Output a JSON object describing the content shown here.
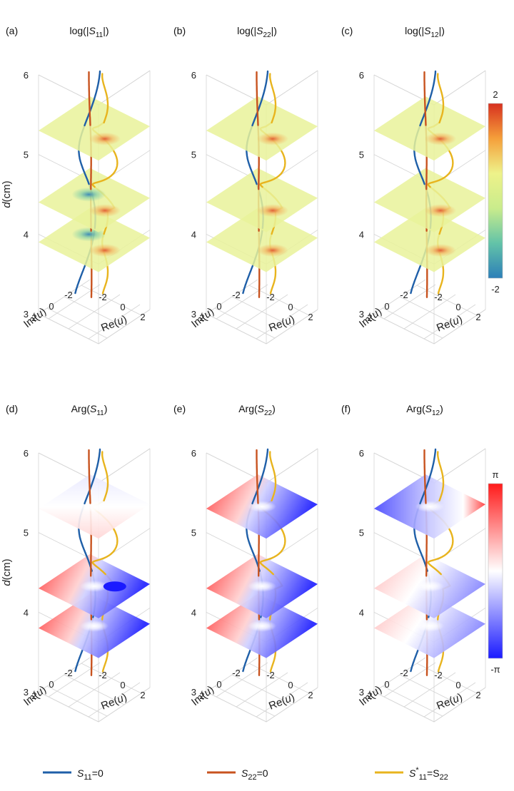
{
  "figure": {
    "row1_colorbar": {
      "max_label": "2",
      "min_label": "-2",
      "colors": [
        "#d7301f",
        "#f59f3a",
        "#eef28a",
        "#c9ec8c",
        "#63c3a8",
        "#2c7fb8"
      ]
    },
    "row2_colorbar": {
      "max_label": "π",
      "min_label": "-π",
      "colors": [
        "#ff1a1a",
        "#ffffff",
        "#1a1aff"
      ]
    },
    "y_axis_label": "d(cm)",
    "im_axis_label": "Im(u)",
    "re_axis_label": "Re(u)"
  },
  "chart_data": [
    {
      "panel": "(a)",
      "title_prefix": "log(|",
      "title_sym": "S",
      "title_sub": "11",
      "title_suffix": "|)",
      "type": "3d-surface-stack",
      "quantity": "log|S11|",
      "z_ticks": [
        "3",
        "4",
        "5",
        "6"
      ],
      "im_ticks": [
        "2",
        "0",
        "-2"
      ],
      "re_ticks": [
        "-2",
        "0",
        "2"
      ],
      "zlim": [
        3,
        6
      ],
      "slice_d": [
        3.9,
        4.4,
        5.3
      ],
      "colorbar_range": [
        -2,
        2
      ]
    },
    {
      "panel": "(b)",
      "title_prefix": "log(|",
      "title_sym": "S",
      "title_sub": "22",
      "title_suffix": "|)",
      "type": "3d-surface-stack",
      "quantity": "log|S22|",
      "z_ticks": [
        "3",
        "4",
        "5",
        "6"
      ],
      "im_ticks": [
        "2",
        "0",
        "-2"
      ],
      "re_ticks": [
        "-2",
        "0",
        "2"
      ],
      "zlim": [
        3,
        6
      ],
      "slice_d": [
        3.9,
        4.4,
        5.3
      ],
      "colorbar_range": [
        -2,
        2
      ]
    },
    {
      "panel": "(c)",
      "title_prefix": "log(|",
      "title_sym": "S",
      "title_sub": "12",
      "title_suffix": "|)",
      "type": "3d-surface-stack",
      "quantity": "log|S12|",
      "z_ticks": [
        "3",
        "4",
        "5",
        "6"
      ],
      "im_ticks": [
        "2",
        "0",
        "-2"
      ],
      "re_ticks": [
        "-2",
        "0",
        "2"
      ],
      "zlim": [
        3,
        6
      ],
      "slice_d": [
        3.9,
        4.4,
        5.3
      ],
      "colorbar_range": [
        -2,
        2
      ]
    },
    {
      "panel": "(d)",
      "title_prefix": "Arg(",
      "title_sym": "S",
      "title_sub": "11",
      "title_suffix": ")",
      "type": "3d-surface-stack",
      "quantity": "Arg(S11)",
      "z_ticks": [
        "3",
        "4",
        "5",
        "6"
      ],
      "im_ticks": [
        "2",
        "0",
        "-2"
      ],
      "re_ticks": [
        "-2",
        "0",
        "2"
      ],
      "zlim": [
        3,
        6
      ],
      "slice_d": [
        3.8,
        4.3,
        5.3
      ],
      "colorbar_range": [
        "-π",
        "π"
      ]
    },
    {
      "panel": "(e)",
      "title_prefix": "Arg(",
      "title_sym": "S",
      "title_sub": "22",
      "title_suffix": ")",
      "type": "3d-surface-stack",
      "quantity": "Arg(S22)",
      "z_ticks": [
        "3",
        "4",
        "5",
        "6"
      ],
      "im_ticks": [
        "2",
        "0",
        "-2"
      ],
      "re_ticks": [
        "-2",
        "0",
        "2"
      ],
      "zlim": [
        3,
        6
      ],
      "slice_d": [
        3.8,
        4.3,
        5.3
      ],
      "colorbar_range": [
        "-π",
        "π"
      ]
    },
    {
      "panel": "(f)",
      "title_prefix": "Arg(",
      "title_sym": "S",
      "title_sub": "12",
      "title_suffix": ")",
      "type": "3d-surface-stack",
      "quantity": "Arg(S12)",
      "z_ticks": [
        "3",
        "4",
        "5",
        "6"
      ],
      "im_ticks": [
        "2",
        "0",
        "-2"
      ],
      "re_ticks": [
        "-2",
        "0",
        "2"
      ],
      "zlim": [
        3,
        6
      ],
      "slice_d": [
        3.8,
        4.3,
        5.3
      ],
      "colorbar_range": [
        "-π",
        "π"
      ]
    }
  ],
  "curves": [
    {
      "name": "S11=0",
      "color": "#1f5fa8"
    },
    {
      "name": "S22=0",
      "color": "#c8531f"
    },
    {
      "name": "S*11=S22",
      "color": "#e8b41e"
    }
  ],
  "legend": [
    {
      "sym": "S",
      "sup": "",
      "sub": "11",
      "rest": "=0",
      "color": "#1f5fa8"
    },
    {
      "sym": "S",
      "sup": "",
      "sub": "22",
      "rest": "=0",
      "color": "#c8531f"
    },
    {
      "sym": "S",
      "sup": "*",
      "sub": "11",
      "rest": "=S",
      "sub2": "22",
      "color": "#e8b41e"
    }
  ]
}
